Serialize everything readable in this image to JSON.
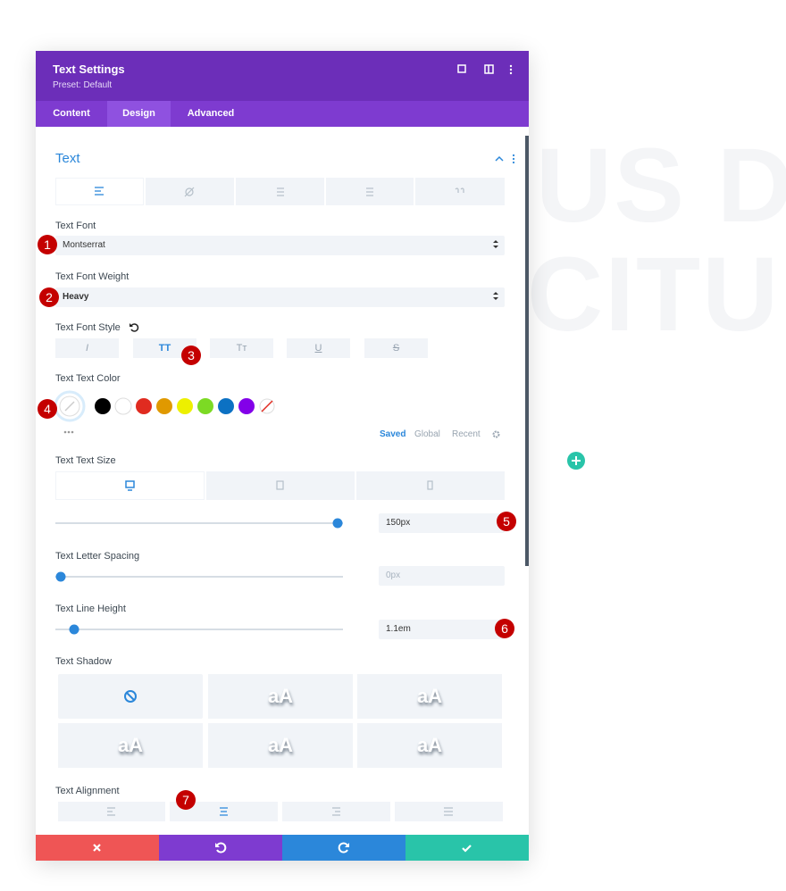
{
  "header": {
    "title": "Text Settings",
    "preset": "Preset: Default"
  },
  "tabs": [
    "Content",
    "Design",
    "Advanced"
  ],
  "active_tab": 1,
  "background_text": [
    "US D",
    "CITU"
  ],
  "section": {
    "title": "Text"
  },
  "fields": {
    "font_label": "Text Font",
    "font_value": "Montserrat",
    "weight_label": "Text Font Weight",
    "weight_value": "Heavy",
    "style_label": "Text Font Style",
    "color_label": "Text Text Color",
    "size_label": "Text Text Size",
    "size_value": "150px",
    "spacing_label": "Text Letter Spacing",
    "spacing_value": "0px",
    "line_height_label": "Text Line Height",
    "line_height_value": "1.1em",
    "shadow_label": "Text Shadow",
    "alignment_label": "Text Alignment"
  },
  "font_style_options": [
    "I",
    "TT",
    "Tт",
    "U",
    "S"
  ],
  "color_swatches": [
    "#000000",
    "#ffffff",
    "#e02b20",
    "#e09900",
    "#edf000",
    "#7cda24",
    "#0c71c3",
    "#8300e9"
  ],
  "color_tabs": [
    "Saved",
    "Global",
    "Recent"
  ],
  "shadow_samples": [
    "aA",
    "aA",
    "aA",
    "aA",
    "aA"
  ],
  "badges": [
    "1",
    "2",
    "3",
    "4",
    "5",
    "6",
    "7"
  ]
}
